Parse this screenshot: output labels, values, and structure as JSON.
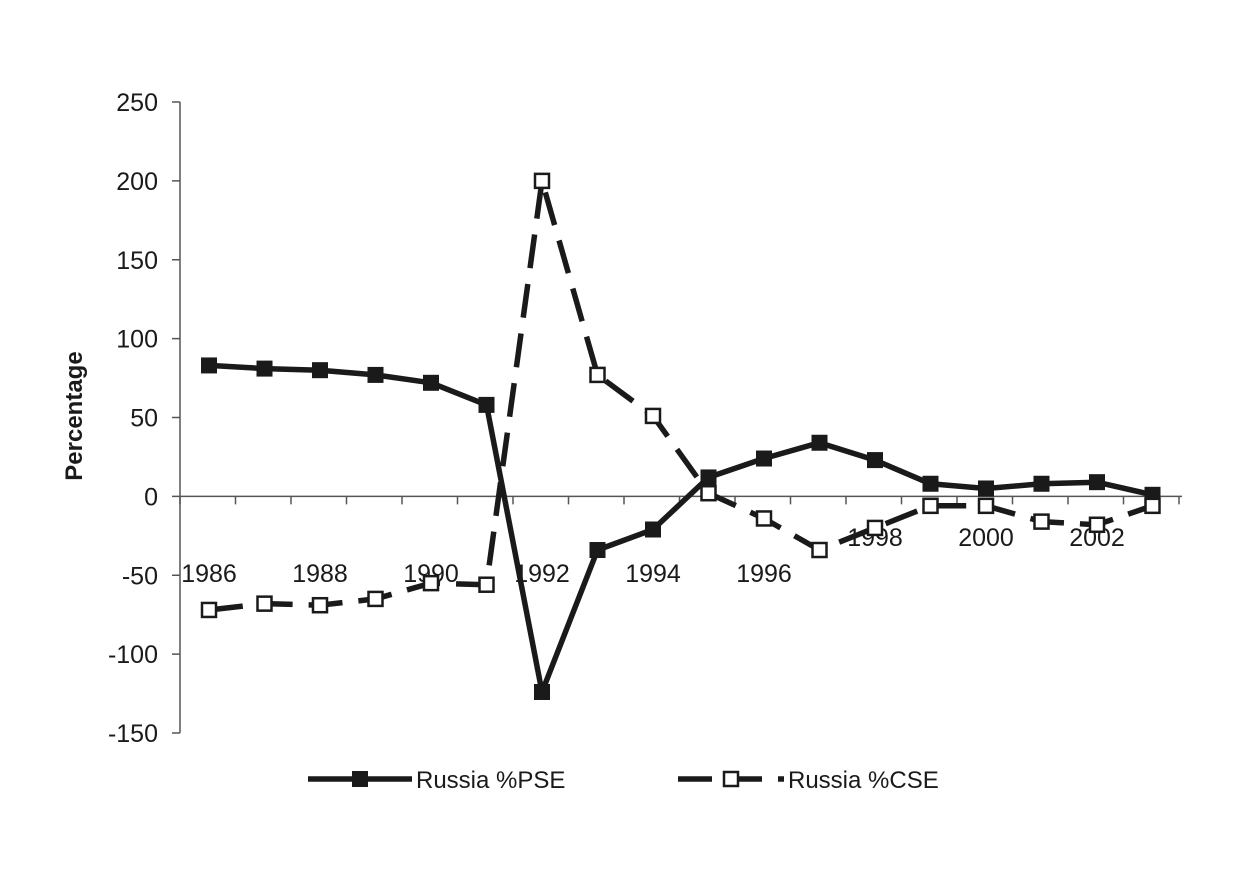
{
  "chart_data": {
    "type": "line",
    "ylabel": "Percentage",
    "xlabel": "",
    "ylim": [
      -150,
      250
    ],
    "yticks": [
      -150,
      -100,
      -50,
      0,
      50,
      100,
      150,
      200,
      250
    ],
    "xlim": [
      1986,
      2003
    ],
    "xtick_labels": [
      "1986",
      "1988",
      "1990",
      "1992",
      "1994",
      "1996",
      "1998",
      "2000",
      "2002"
    ],
    "x": [
      1986,
      1987,
      1988,
      1989,
      1990,
      1991,
      1992,
      1993,
      1994,
      1995,
      1996,
      1997,
      1998,
      1999,
      2000,
      2001,
      2002,
      2003
    ],
    "series": [
      {
        "name": "Russia %PSE",
        "values": [
          83,
          81,
          80,
          77,
          72,
          58,
          -124,
          -34,
          -21,
          12,
          24,
          34,
          23,
          8,
          5,
          8,
          9,
          1
        ],
        "line_style": "solid",
        "marker": "filled-square",
        "color": "#1a1a1a"
      },
      {
        "name": "Russia %CSE",
        "values": [
          -72,
          -68,
          -69,
          -65,
          -55,
          -56,
          200,
          77,
          51,
          2,
          -14,
          -34,
          -20,
          -6,
          -6,
          -16,
          -18,
          -6
        ],
        "line_style": "dashed",
        "marker": "open-square",
        "color": "#1a1a1a"
      }
    ],
    "grid": false,
    "legend_position": "bottom"
  }
}
